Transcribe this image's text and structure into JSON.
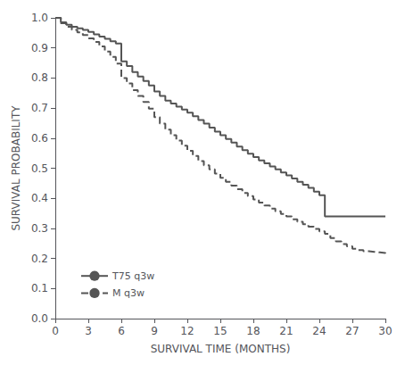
{
  "chart_data": {
    "type": "step",
    "xlabel": "SURVIVAL TIME (MONTHS)",
    "ylabel": "SURVIVAL PROBABILITY",
    "xlim": [
      0,
      30
    ],
    "ylim": [
      0.0,
      1.0
    ],
    "xticks": [
      0,
      3,
      6,
      9,
      12,
      15,
      18,
      21,
      24,
      27,
      30
    ],
    "yticks": [
      {
        "value": 0.0,
        "label": "0.0"
      },
      0.1,
      0.2,
      0.3,
      0.4,
      0.5,
      0.6,
      0.7,
      0.8,
      0.9,
      {
        "value": 1.0,
        "label": "1.0"
      }
    ],
    "grid": false,
    "legend": "lower left",
    "series": [
      {
        "name": "T75 q3w",
        "color": "#555555",
        "line_style": "solid",
        "x": [
          0,
          0.5,
          1.0,
          1.5,
          2.0,
          2.5,
          3.0,
          3.5,
          4.0,
          4.5,
          5.0,
          5.5,
          6.0,
          6.5,
          7.0,
          7.5,
          8.0,
          8.5,
          9.0,
          9.5,
          10.0,
          10.5,
          11.0,
          11.5,
          12.0,
          12.5,
          13.0,
          13.5,
          14.0,
          14.5,
          15.0,
          15.5,
          16.0,
          16.5,
          17.0,
          17.5,
          18.0,
          18.5,
          19.0,
          19.5,
          20.0,
          20.5,
          21.0,
          21.5,
          22.0,
          22.5,
          23.0,
          23.5,
          24.0,
          24.5,
          30.0
        ],
        "values": [
          1.0,
          0.985,
          0.977,
          0.97,
          0.965,
          0.96,
          0.953,
          0.945,
          0.938,
          0.93,
          0.922,
          0.915,
          0.855,
          0.84,
          0.82,
          0.805,
          0.79,
          0.775,
          0.755,
          0.74,
          0.725,
          0.715,
          0.705,
          0.695,
          0.685,
          0.673,
          0.66,
          0.648,
          0.635,
          0.622,
          0.61,
          0.597,
          0.585,
          0.572,
          0.56,
          0.548,
          0.537,
          0.526,
          0.516,
          0.506,
          0.496,
          0.486,
          0.476,
          0.466,
          0.455,
          0.445,
          0.435,
          0.422,
          0.41,
          0.34,
          0.34
        ]
      },
      {
        "name": "M q3w",
        "color": "#555555",
        "line_style": "dashed",
        "x": [
          0,
          0.5,
          1.0,
          1.5,
          2.0,
          2.5,
          3.0,
          3.5,
          4.0,
          4.5,
          5.0,
          5.5,
          6.0,
          6.5,
          7.0,
          7.5,
          8.0,
          8.5,
          9.0,
          9.5,
          10.0,
          10.5,
          11.0,
          11.5,
          12.0,
          12.5,
          13.0,
          13.5,
          14.0,
          14.5,
          15.0,
          15.5,
          16.0,
          16.5,
          17.0,
          17.5,
          18.0,
          18.5,
          19.0,
          19.5,
          20.0,
          20.5,
          21.0,
          21.5,
          22.0,
          22.5,
          23.0,
          23.5,
          24.0,
          24.5,
          25.0,
          25.5,
          26.0,
          26.5,
          27.0,
          27.5,
          28.0,
          28.5,
          29.0,
          29.5,
          30.0
        ],
        "values": [
          1.0,
          0.982,
          0.97,
          0.96,
          0.952,
          0.943,
          0.932,
          0.92,
          0.905,
          0.888,
          0.87,
          0.848,
          0.8,
          0.782,
          0.76,
          0.74,
          0.72,
          0.698,
          0.67,
          0.648,
          0.628,
          0.61,
          0.592,
          0.575,
          0.558,
          0.541,
          0.524,
          0.51,
          0.496,
          0.482,
          0.468,
          0.455,
          0.442,
          0.43,
          0.418,
          0.407,
          0.396,
          0.386,
          0.376,
          0.366,
          0.357,
          0.348,
          0.34,
          0.33,
          0.322,
          0.314,
          0.306,
          0.298,
          0.29,
          0.282,
          0.268,
          0.257,
          0.248,
          0.24,
          0.232,
          0.228,
          0.224,
          0.222,
          0.22,
          0.218,
          0.215
        ]
      }
    ]
  }
}
